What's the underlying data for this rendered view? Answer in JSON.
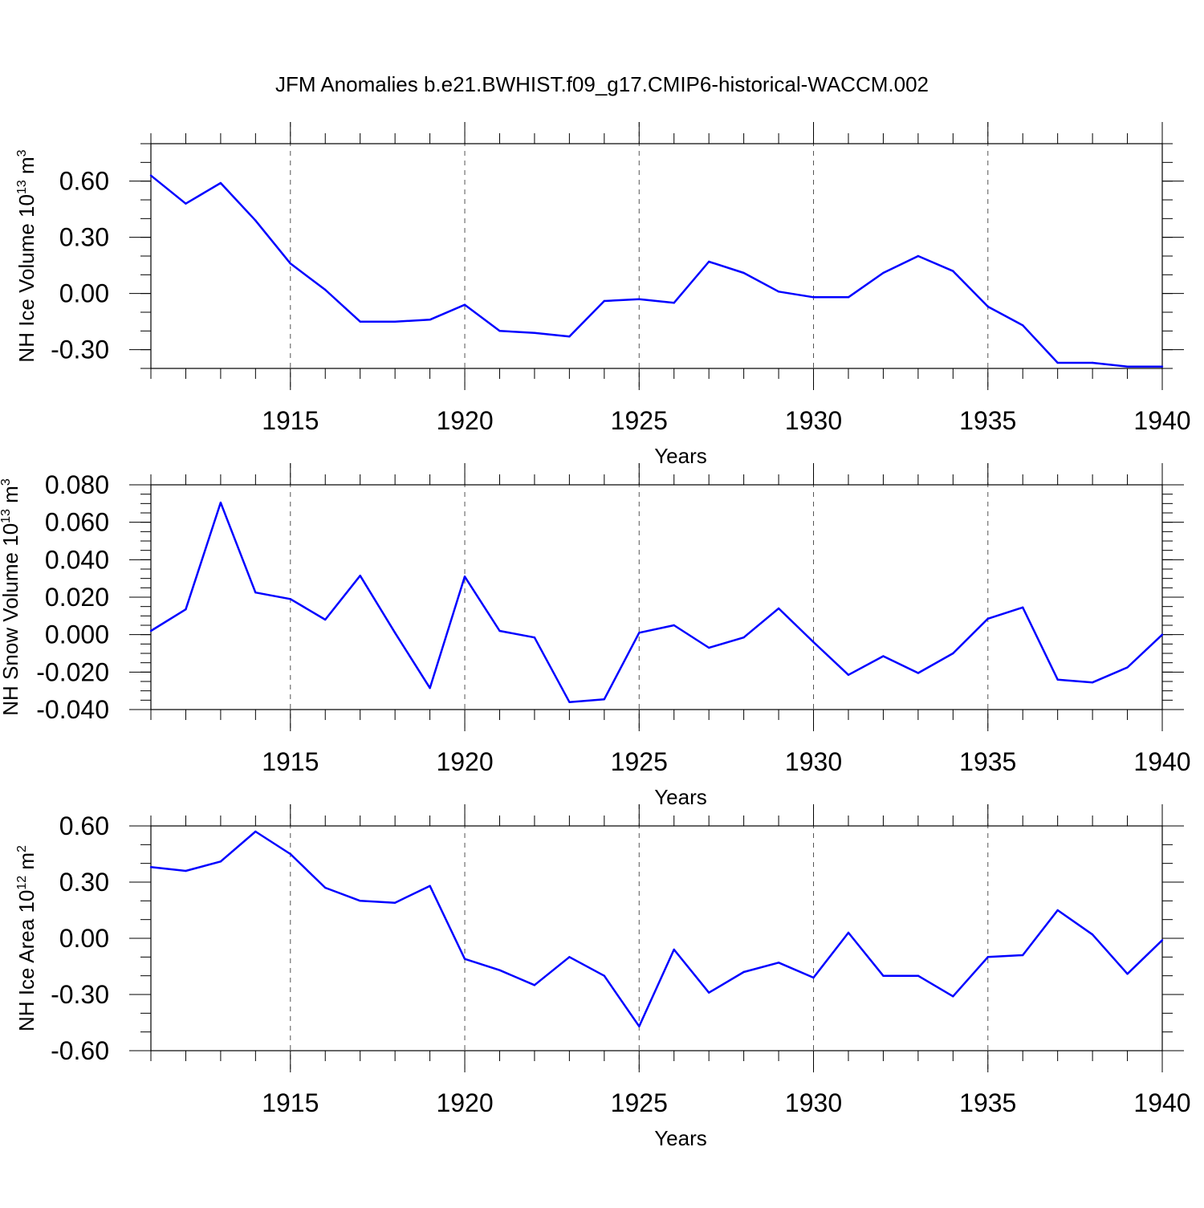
{
  "title": "JFM Anomalies b.e21.BWHIST.f09_g17.CMIP6-historical-WACCM.002",
  "line_color": "#0000ff",
  "chart_data": [
    {
      "type": "line",
      "ylabel": {
        "text": "NH Ice Volume 10",
        "sup": "13",
        "unit": " m",
        "unit_sup": "3"
      },
      "xlabel": "Years",
      "xlim": [
        1911,
        1940
      ],
      "ylim": [
        -0.4,
        0.8
      ],
      "yticks": [
        -0.3,
        0.0,
        0.3,
        0.6
      ],
      "ytick_labels": [
        "-0.30",
        "0.00",
        "0.30",
        "0.60"
      ],
      "yminor_step": 0.1,
      "xticks": [
        1915,
        1920,
        1925,
        1930,
        1935,
        1940
      ],
      "xtick_labels": [
        "1915",
        "1920",
        "1925",
        "1930",
        "1935",
        "1940"
      ],
      "x": [
        1911,
        1912,
        1913,
        1914,
        1915,
        1916,
        1917,
        1918,
        1919,
        1920,
        1921,
        1922,
        1923,
        1924,
        1925,
        1926,
        1927,
        1928,
        1929,
        1930,
        1931,
        1932,
        1933,
        1934,
        1935,
        1936,
        1937,
        1938,
        1939,
        1940
      ],
      "values": [
        0.63,
        0.48,
        0.59,
        0.39,
        0.16,
        0.02,
        -0.15,
        -0.15,
        -0.14,
        -0.06,
        -0.2,
        -0.21,
        -0.23,
        -0.04,
        -0.03,
        -0.05,
        0.17,
        0.11,
        0.01,
        -0.02,
        -0.02,
        0.11,
        0.2,
        0.12,
        -0.07,
        -0.17,
        -0.37,
        -0.37,
        -0.39,
        -0.39
      ]
    },
    {
      "type": "line",
      "ylabel": {
        "text": "NH Snow Volume 10",
        "sup": "13",
        "unit": " m",
        "unit_sup": "3"
      },
      "xlabel": "Years",
      "xlim": [
        1911,
        1940
      ],
      "ylim": [
        -0.04,
        0.08
      ],
      "yticks": [
        -0.04,
        -0.02,
        0.0,
        0.02,
        0.04,
        0.06,
        0.08
      ],
      "ytick_labels": [
        "-0.040",
        "-0.020",
        "0.000",
        "0.020",
        "0.040",
        "0.060",
        "0.080"
      ],
      "yminor_step": 0.005,
      "xticks": [
        1915,
        1920,
        1925,
        1930,
        1935,
        1940
      ],
      "xtick_labels": [
        "1915",
        "1920",
        "1925",
        "1930",
        "1935",
        "1940"
      ],
      "x": [
        1911,
        1912,
        1913,
        1914,
        1915,
        1916,
        1917,
        1918,
        1919,
        1920,
        1921,
        1922,
        1923,
        1924,
        1925,
        1926,
        1927,
        1928,
        1929,
        1930,
        1931,
        1932,
        1933,
        1934,
        1935,
        1936,
        1937,
        1938,
        1939,
        1940
      ],
      "values": [
        0.002,
        0.0135,
        0.0705,
        0.0225,
        0.019,
        0.008,
        0.0315,
        0.001,
        -0.0285,
        0.031,
        0.002,
        -0.0015,
        -0.036,
        -0.0345,
        0.001,
        0.005,
        -0.007,
        -0.0015,
        0.014,
        -0.004,
        -0.0215,
        -0.0115,
        -0.0205,
        -0.01,
        0.0085,
        0.0145,
        -0.024,
        -0.0255,
        -0.0175,
        0.0
      ]
    },
    {
      "type": "line",
      "ylabel": {
        "text": "NH Ice Area 10",
        "sup": "12",
        "unit": " m",
        "unit_sup": "2"
      },
      "xlabel": "Years",
      "xlim": [
        1911,
        1940
      ],
      "ylim": [
        -0.6,
        0.6
      ],
      "yticks": [
        -0.6,
        -0.3,
        0.0,
        0.3,
        0.6
      ],
      "ytick_labels": [
        "-0.60",
        "-0.30",
        "0.00",
        "0.30",
        "0.60"
      ],
      "yminor_step": 0.1,
      "xticks": [
        1915,
        1920,
        1925,
        1930,
        1935,
        1940
      ],
      "xtick_labels": [
        "1915",
        "1920",
        "1925",
        "1930",
        "1935",
        "1940"
      ],
      "x": [
        1911,
        1912,
        1913,
        1914,
        1915,
        1916,
        1917,
        1918,
        1919,
        1920,
        1921,
        1922,
        1923,
        1924,
        1925,
        1926,
        1927,
        1928,
        1929,
        1930,
        1931,
        1932,
        1933,
        1934,
        1935,
        1936,
        1937,
        1938,
        1939,
        1940
      ],
      "values": [
        0.38,
        0.36,
        0.41,
        0.57,
        0.45,
        0.27,
        0.2,
        0.19,
        0.28,
        -0.11,
        -0.17,
        -0.25,
        -0.1,
        -0.2,
        -0.47,
        -0.06,
        -0.29,
        -0.18,
        -0.13,
        -0.21,
        0.03,
        -0.2,
        -0.2,
        -0.31,
        -0.1,
        -0.09,
        0.15,
        0.02,
        -0.19,
        -0.01
      ]
    }
  ]
}
